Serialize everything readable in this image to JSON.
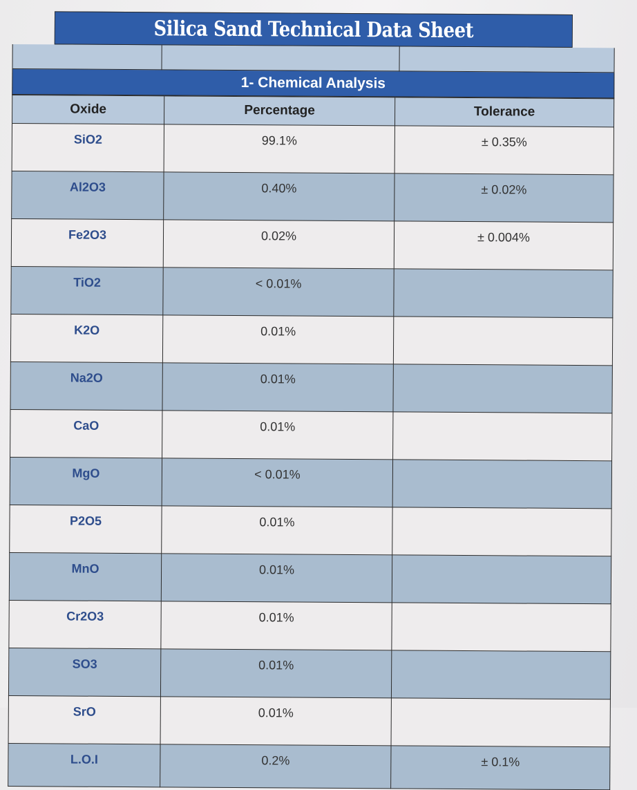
{
  "title": "Silica Sand Technical Data Sheet",
  "section_title": "1- Chemical Analysis",
  "table": {
    "headers": [
      "Oxide",
      "Percentage",
      "Tolerance"
    ],
    "rows": [
      {
        "oxide": "SiO2",
        "percentage": "99.1%",
        "tolerance": "± 0.35%"
      },
      {
        "oxide": "Al2O3",
        "percentage": "0.40%",
        "tolerance": "± 0.02%"
      },
      {
        "oxide": "Fe2O3",
        "percentage": "0.02%",
        "tolerance": "± 0.004%"
      },
      {
        "oxide": "TiO2",
        "percentage": "< 0.01%",
        "tolerance": ""
      },
      {
        "oxide": "K2O",
        "percentage": "0.01%",
        "tolerance": ""
      },
      {
        "oxide": "Na2O",
        "percentage": "0.01%",
        "tolerance": ""
      },
      {
        "oxide": "CaO",
        "percentage": "0.01%",
        "tolerance": ""
      },
      {
        "oxide": "MgO",
        "percentage": "< 0.01%",
        "tolerance": ""
      },
      {
        "oxide": "P2O5",
        "percentage": "0.01%",
        "tolerance": ""
      },
      {
        "oxide": "MnO",
        "percentage": "0.01%",
        "tolerance": ""
      },
      {
        "oxide": "Cr2O3",
        "percentage": "0.01%",
        "tolerance": ""
      },
      {
        "oxide": "SO3",
        "percentage": "0.01%",
        "tolerance": ""
      },
      {
        "oxide": "SrO",
        "percentage": "0.01%",
        "tolerance": ""
      },
      {
        "oxide": "L.O.I",
        "percentage": "0.2%",
        "tolerance": "± 0.1%"
      }
    ]
  },
  "colors": {
    "header_blue": "#2f5da9",
    "row_light": "#eeeced",
    "row_dark": "#a9bccf",
    "oxide_text": "#2e4d8c"
  }
}
